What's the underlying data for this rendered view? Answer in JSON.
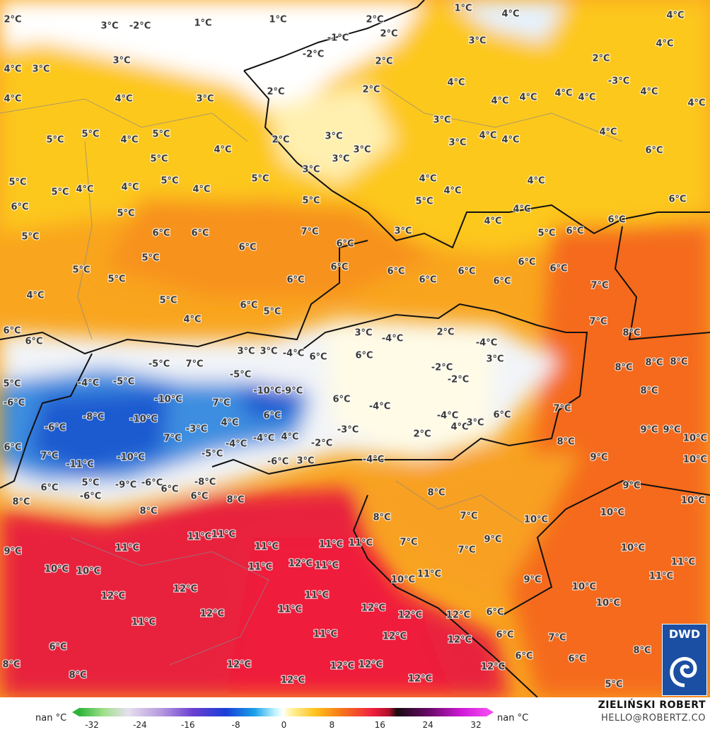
{
  "temperature_labels": [
    "2°C",
    "3°C",
    "-2°C",
    "1°C",
    "1°C",
    "2°C",
    "1°C",
    "4°C",
    "4°C",
    "4°C",
    "-1°C",
    "2°C",
    "3°C",
    "-2°C",
    "2°C",
    "2°C",
    "-3°C",
    "4°C",
    "4°C",
    "3°C",
    "3°C",
    "4°C",
    "4°C",
    "3°C",
    "2°C",
    "2°C",
    "4°C",
    "4°C",
    "4°C",
    "4°C",
    "4°C",
    "4°C",
    "5°C",
    "4°C",
    "5°C",
    "5°C",
    "5°C",
    "4°C",
    "2°C",
    "3°C",
    "3°C",
    "3°C",
    "3°C",
    "3°C",
    "4°C",
    "4°C",
    "4°C",
    "6°C",
    "5°C",
    "5°C",
    "4°C",
    "4°C",
    "5°C",
    "4°C",
    "5°C",
    "3°C",
    "4°C",
    "4°C",
    "4°C",
    "6°C",
    "6°C",
    "5°C",
    "5°C",
    "5°C",
    "4°C",
    "4°C",
    "6°C",
    "5°C",
    "6°C",
    "6°C",
    "7°C",
    "3°C",
    "5°C",
    "6°C",
    "6°C",
    "6°C",
    "5°C",
    "5°C",
    "5°C",
    "6°C",
    "6°C",
    "6°C",
    "6°C",
    "6°C",
    "6°C",
    "6°C",
    "6°C",
    "7°C",
    "4°C",
    "5°C",
    "6°C",
    "5°C",
    "4°C",
    "7°C",
    "6°C",
    "6°C",
    "3°C",
    "-4°C",
    "2°C",
    "-4°C",
    "8°C",
    "3°C",
    "3°C",
    "-4°C",
    "6°C",
    "6°C",
    "3°C",
    "-2°C",
    "8°C",
    "8°C",
    "8°C",
    "-5°C",
    "7°C",
    "-5°C",
    "-2°C",
    "5°C",
    "-4°C",
    "-5°C",
    "-10°C",
    "-9°C",
    "8°C",
    "-6°C",
    "-10°C",
    "7°C",
    "6°C",
    "-4°C",
    "6°C",
    "7°C",
    "6°C",
    "-8°C",
    "-10°C",
    "4°C",
    "-4°C",
    "4°C",
    "3°C",
    "9°C",
    "9°C",
    "-6°C",
    "-3°C",
    "-3°C",
    "4°C",
    "2°C",
    "7°C",
    "-4°C",
    "-4°C",
    "8°C",
    "10°C",
    "6°C",
    "7°C",
    "-10°C",
    "-5°C",
    "-2°C",
    "9°C",
    "10°C",
    "-11°C",
    "-6°C",
    "3°C",
    "-4°C",
    "6°C",
    "5°C",
    "-9°C",
    "-6°C",
    "6°C",
    "-8°C",
    "8°C",
    "9°C",
    "-6°C",
    "6°C",
    "8°C",
    "10°C",
    "8°C",
    "8°C",
    "8°C",
    "7°C",
    "10°C",
    "10°C",
    "11°C",
    "11°C",
    "11°C",
    "11°C",
    "11°C",
    "11°C",
    "7°C",
    "7°C",
    "9°C",
    "10°C",
    "9°C",
    "10°C",
    "10°C",
    "12°C",
    "11°C",
    "11°C",
    "11°C",
    "11°C",
    "10°C",
    "11°C",
    "9°C",
    "10°C",
    "10°C",
    "12°C",
    "12°C",
    "12°C",
    "11°C",
    "11°C",
    "12°C",
    "12°C",
    "12°C",
    "6°C",
    "11°C",
    "11°C",
    "12°C",
    "12°C",
    "6°C",
    "7°C",
    "6°C",
    "8°C",
    "8°C",
    "12°C",
    "12°C",
    "12°C",
    "12°C",
    "6°C",
    "6°C",
    "8°C",
    "12°C",
    "12°C",
    "5°C"
  ],
  "colorbar": {
    "nan_left": "nan °C",
    "nan_right": "nan °C",
    "lim": [
      -32,
      32
    ],
    "ticks": [
      -32,
      -24,
      -16,
      -8,
      0,
      8,
      16,
      24,
      32
    ]
  },
  "credit": {
    "author": "ZIELIŃSKI ROBERT",
    "contact": "HELLO@ROBERTZ.CO"
  },
  "logo": {
    "text": "DWD"
  }
}
